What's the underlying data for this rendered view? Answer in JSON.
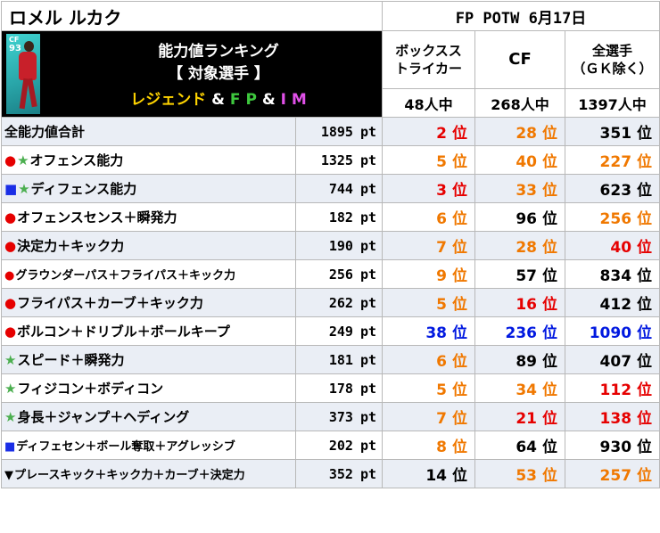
{
  "player": {
    "name": "ロメル ルカク",
    "card_position": "CF",
    "card_rating": "93"
  },
  "event": "FP POTW 6月17日",
  "header": {
    "line1": "能力値ランキング",
    "line2": "【 対象選手 】",
    "line3": {
      "legend": "レジェンド",
      "amp1": " & ",
      "fp": "F P",
      "amp2": " & ",
      "im": "I M"
    }
  },
  "columns": [
    {
      "title_line1": "ボックスス",
      "title_line2": "トライカー",
      "count": "48人中"
    },
    {
      "title": "CF",
      "count": "268人中"
    },
    {
      "title_line1": "全選手",
      "title_line2": "（ＧＫ除く）",
      "count": "1397人中"
    }
  ],
  "rank_unit": "位",
  "value_unit": "pt",
  "colors": {
    "red": "#e60000",
    "orange": "#f07800",
    "blue": "#0018e0",
    "black": "#000000",
    "circle_icon": "#e60000",
    "star_icon": "#4caf50",
    "square_icon": "#1a2ee6"
  },
  "rows": [
    {
      "icons": [],
      "label": "全能力値合計",
      "value": "1895",
      "ranks": [
        {
          "v": "2",
          "c": "red"
        },
        {
          "v": "28",
          "c": "orange"
        },
        {
          "v": "351",
          "c": "black"
        }
      ]
    },
    {
      "icons": [
        "circle",
        "star"
      ],
      "label": "オフェンス能力",
      "value": "1325",
      "ranks": [
        {
          "v": "5",
          "c": "orange"
        },
        {
          "v": "40",
          "c": "orange"
        },
        {
          "v": "227",
          "c": "orange"
        }
      ]
    },
    {
      "icons": [
        "square",
        "star"
      ],
      "label": "ディフェンス能力",
      "value": "744",
      "ranks": [
        {
          "v": "3",
          "c": "red"
        },
        {
          "v": "33",
          "c": "orange"
        },
        {
          "v": "623",
          "c": "black"
        }
      ]
    },
    {
      "icons": [
        "circle"
      ],
      "label": "オフェンスセンス＋瞬発力",
      "value": "182",
      "ranks": [
        {
          "v": "6",
          "c": "orange"
        },
        {
          "v": "96",
          "c": "black"
        },
        {
          "v": "256",
          "c": "orange"
        }
      ]
    },
    {
      "icons": [
        "circle"
      ],
      "label": "決定力＋キック力",
      "value": "190",
      "ranks": [
        {
          "v": "7",
          "c": "orange"
        },
        {
          "v": "28",
          "c": "orange"
        },
        {
          "v": "40",
          "c": "red"
        }
      ]
    },
    {
      "icons": [
        "circle"
      ],
      "label": "グラウンダーパス＋フライパス＋キック力",
      "small": true,
      "value": "256",
      "ranks": [
        {
          "v": "9",
          "c": "orange"
        },
        {
          "v": "57",
          "c": "black"
        },
        {
          "v": "834",
          "c": "black"
        }
      ]
    },
    {
      "icons": [
        "circle"
      ],
      "label": "フライパス＋カーブ＋キック力",
      "value": "262",
      "ranks": [
        {
          "v": "5",
          "c": "orange"
        },
        {
          "v": "16",
          "c": "red"
        },
        {
          "v": "412",
          "c": "black"
        }
      ]
    },
    {
      "icons": [
        "circle"
      ],
      "label": "ボルコン＋ドリブル＋ボールキープ",
      "value": "249",
      "ranks": [
        {
          "v": "38",
          "c": "blue"
        },
        {
          "v": "236",
          "c": "blue"
        },
        {
          "v": "1090",
          "c": "blue"
        }
      ]
    },
    {
      "icons": [
        "star"
      ],
      "label": "スピード＋瞬発力",
      "value": "181",
      "ranks": [
        {
          "v": "6",
          "c": "orange"
        },
        {
          "v": "89",
          "c": "black"
        },
        {
          "v": "407",
          "c": "black"
        }
      ]
    },
    {
      "icons": [
        "star"
      ],
      "label": "フィジコン＋ボディコン",
      "value": "178",
      "ranks": [
        {
          "v": "5",
          "c": "orange"
        },
        {
          "v": "34",
          "c": "orange"
        },
        {
          "v": "112",
          "c": "red"
        }
      ]
    },
    {
      "icons": [
        "star"
      ],
      "label": "身長＋ジャンプ＋ヘディング",
      "value": "373",
      "ranks": [
        {
          "v": "7",
          "c": "orange"
        },
        {
          "v": "21",
          "c": "red"
        },
        {
          "v": "138",
          "c": "red"
        }
      ]
    },
    {
      "icons": [
        "square"
      ],
      "label": "ディフェセン＋ボール奪取＋アグレッシブ",
      "small": true,
      "value": "202",
      "ranks": [
        {
          "v": "8",
          "c": "orange"
        },
        {
          "v": "64",
          "c": "black"
        },
        {
          "v": "930",
          "c": "black"
        }
      ]
    },
    {
      "icons": [
        "triangle"
      ],
      "label": "プレースキック＋キック力＋カーブ＋決定力",
      "small": true,
      "value": "352",
      "ranks": [
        {
          "v": "14",
          "c": "black"
        },
        {
          "v": "53",
          "c": "orange"
        },
        {
          "v": "257",
          "c": "orange"
        }
      ]
    }
  ]
}
